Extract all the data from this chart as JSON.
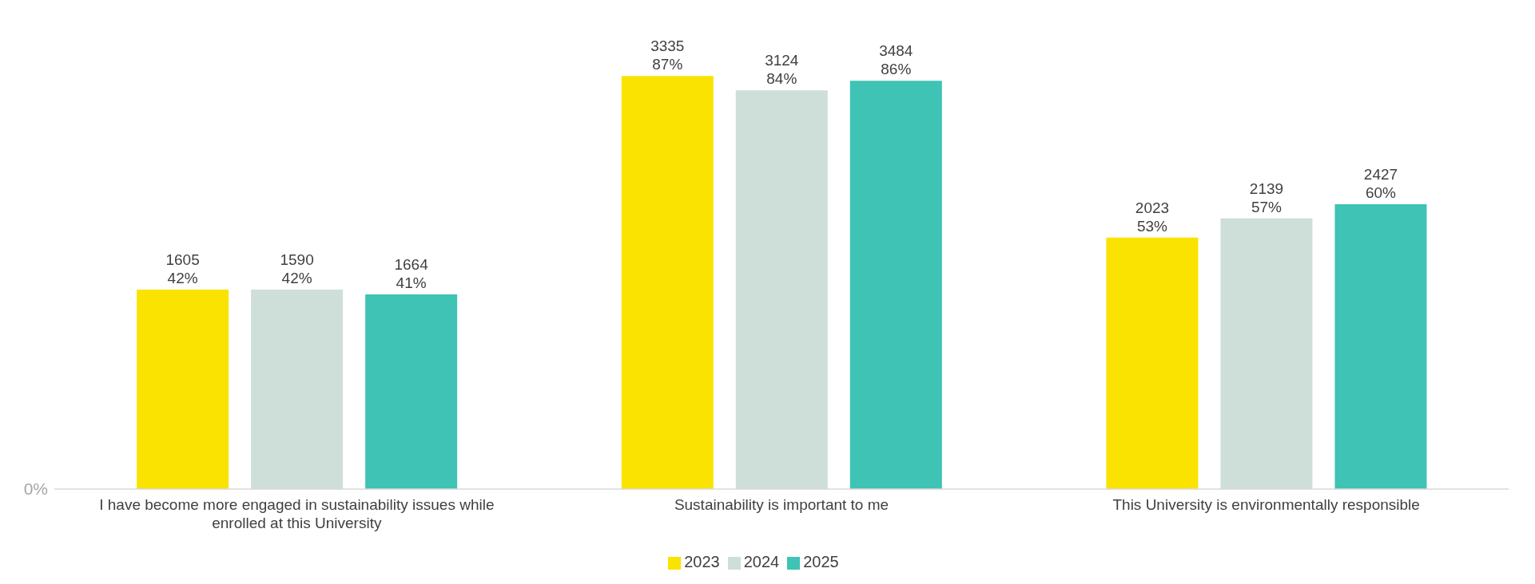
{
  "chart_data": {
    "type": "bar",
    "categories": [
      "I have become more engaged in sustainability issues while enrolled at this University",
      "Sustainability is important to me",
      "This University is environmentally responsible"
    ],
    "series": [
      {
        "name": "2023",
        "color": "#fae300",
        "values": [
          42,
          87,
          53
        ],
        "value_labels": [
          "1605\n42%",
          "3335\n87%",
          "2023\n53%"
        ]
      },
      {
        "name": "2024",
        "color": "#cddfd8",
        "values": [
          42,
          84,
          57
        ],
        "value_labels": [
          "1590\n42%",
          "3124\n84%",
          "2139\n57%"
        ]
      },
      {
        "name": "2025",
        "color": "#3ec3b5",
        "values": [
          41,
          86,
          60
        ],
        "value_labels": [
          "1664\n41%",
          "3484\n86%",
          "2427\n60%"
        ]
      }
    ],
    "annotations": [
      "0%"
    ],
    "grid": false,
    "legend": "bottom"
  }
}
